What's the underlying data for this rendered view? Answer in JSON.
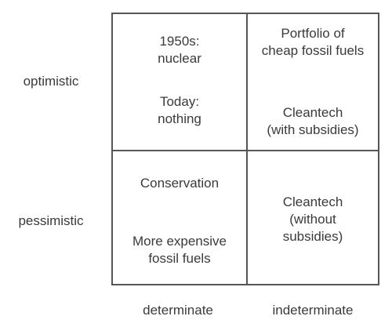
{
  "rows": {
    "optimistic": "optimistic",
    "pessimistic": "pessimistic"
  },
  "columns": {
    "determinate": "determinate",
    "indeterminate": "indeterminate"
  },
  "cells": {
    "optimistic_determinate": {
      "top_line1": "1950s:",
      "top_line2": "nuclear",
      "bottom_line1": "Today:",
      "bottom_line2": "nothing"
    },
    "optimistic_indeterminate": {
      "top_line1": "Portfolio of",
      "top_line2": "cheap fossil fuels",
      "bottom_line1": "Cleantech",
      "bottom_line2": "(with subsidies)"
    },
    "pessimistic_determinate": {
      "top_line1": "Conservation",
      "bottom_line1": "More expensive",
      "bottom_line2": "fossil fuels"
    },
    "pessimistic_indeterminate": {
      "line1": "Cleantech",
      "line2": "(without",
      "line3": "subsidies)"
    }
  }
}
